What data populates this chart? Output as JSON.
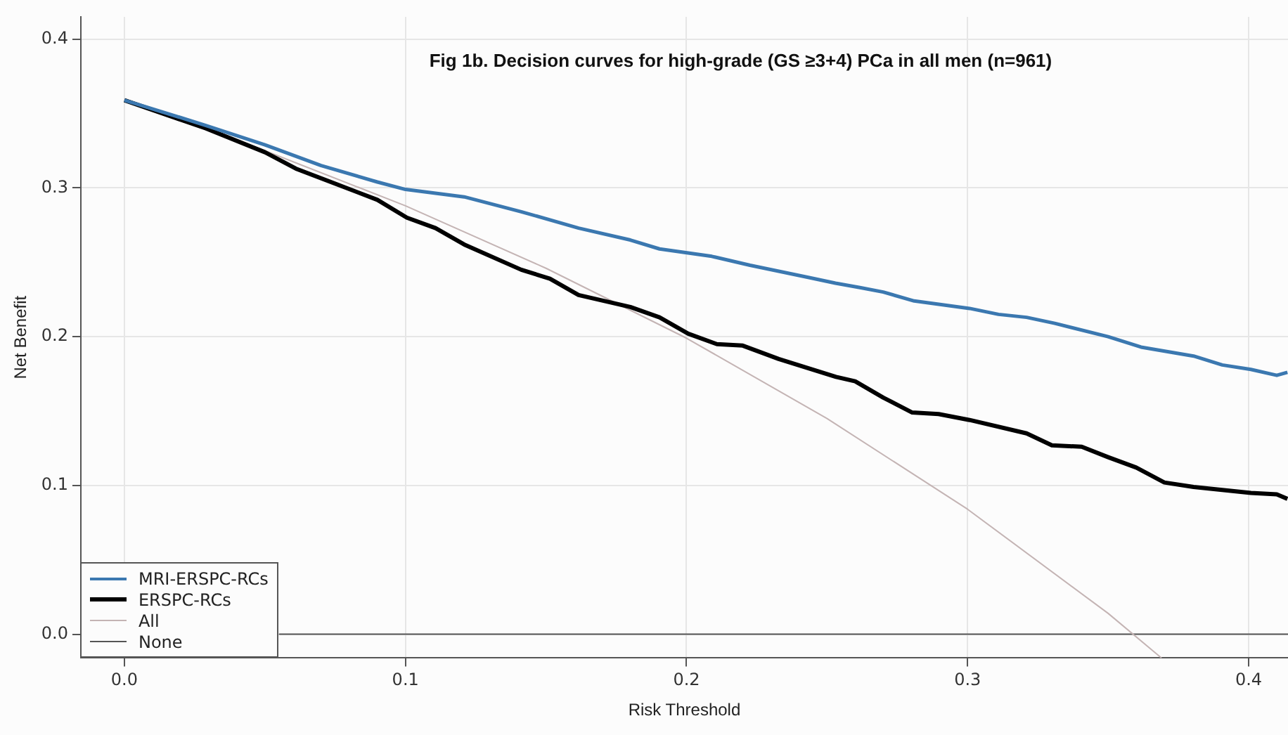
{
  "chart_data": {
    "type": "line",
    "title": "Fig 1b. Decision curves for high-grade (GS ≥3+4) PCa in all men (n=961)",
    "xlabel": "Risk Threshold",
    "ylabel": "Net Benefit",
    "xlim": [
      -0.0155,
      0.414
    ],
    "ylim": [
      -0.016,
      0.415
    ],
    "xticks": [
      {
        "value": 0,
        "label": "0.0"
      },
      0.1,
      0.2,
      0.3,
      0.4
    ],
    "yticks": [
      {
        "value": 0,
        "label": "0.0"
      },
      0.1,
      0.2,
      0.3,
      0.4
    ],
    "grid": true,
    "legend": "bottom left",
    "marker": "none",
    "line_style": "solid",
    "series": [
      {
        "name": "MRI-ERSPC-RCs",
        "color": "#3b78b0",
        "x": [
          0,
          0.029,
          0.05,
          0.07,
          0.09,
          0.1,
          0.1209,
          0.1412,
          0.1616,
          0.18,
          0.1904,
          0.209,
          0.2226,
          0.243,
          0.253,
          0.2617,
          0.27,
          0.281,
          0.3007,
          0.311,
          0.321,
          0.331,
          0.35,
          0.3617,
          0.3804,
          0.3906,
          0.4008,
          0.41,
          0.4138
        ],
        "values": [
          0.359,
          0.342,
          0.329,
          0.315,
          0.304,
          0.299,
          0.294,
          0.284,
          0.273,
          0.265,
          0.259,
          0.254,
          0.248,
          0.24,
          0.236,
          0.233,
          0.23,
          0.224,
          0.219,
          0.215,
          0.213,
          0.209,
          0.2,
          0.193,
          0.187,
          0.181,
          0.178,
          0.174,
          0.176
        ]
      },
      {
        "name": "ERSPC-RCs",
        "color": "#000000",
        "x": [
          0,
          0.029,
          0.05,
          0.061,
          0.09,
          0.1005,
          0.1107,
          0.1209,
          0.1412,
          0.1514,
          0.1616,
          0.18,
          0.1904,
          0.2006,
          0.2108,
          0.22,
          0.2328,
          0.2532,
          0.26,
          0.27,
          0.2803,
          0.2897,
          0.3007,
          0.321,
          0.33,
          0.3406,
          0.35,
          0.36,
          0.37,
          0.3804,
          0.3906,
          0.4008,
          0.41,
          0.4138
        ],
        "values": [
          0.359,
          0.34,
          0.324,
          0.313,
          0.292,
          0.28,
          0.273,
          0.262,
          0.245,
          0.239,
          0.228,
          0.22,
          0.213,
          0.202,
          0.195,
          0.194,
          0.185,
          0.173,
          0.17,
          0.159,
          0.149,
          0.148,
          0.144,
          0.135,
          0.127,
          0.126,
          0.119,
          0.112,
          0.102,
          0.099,
          0.097,
          0.095,
          0.094,
          0.091
        ]
      },
      {
        "name": "All",
        "color": "#c4b4b4",
        "x": [
          0,
          0.05,
          0.1,
          0.15,
          0.2,
          0.25,
          0.3,
          0.35,
          0.369
        ],
        "values": [
          0.359,
          0.325,
          0.288,
          0.246,
          0.199,
          0.145,
          0.084,
          0.014,
          -0.016
        ]
      },
      {
        "name": "None",
        "color": "#555555",
        "x": [
          0.055,
          0.414
        ],
        "values": [
          0,
          0
        ]
      }
    ]
  }
}
